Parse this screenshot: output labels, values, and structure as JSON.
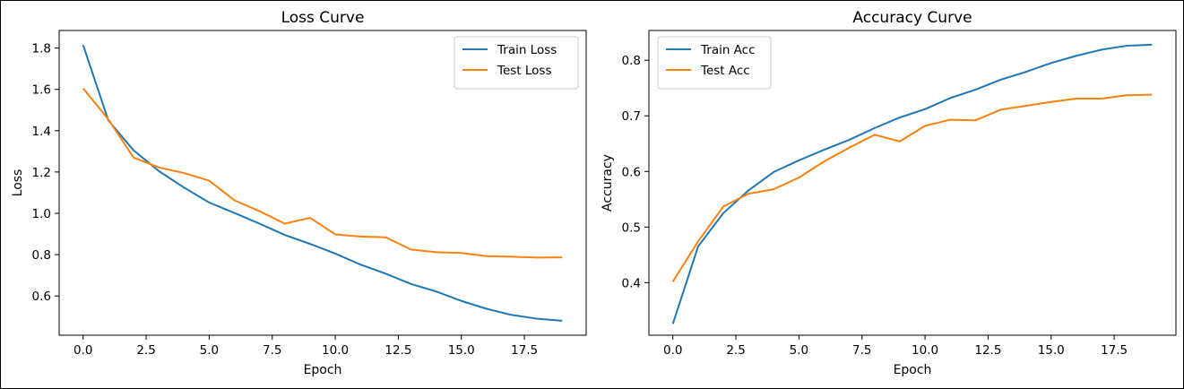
{
  "chart_data": [
    {
      "type": "line",
      "title": "Loss Curve",
      "xlabel": "Epoch",
      "ylabel": "Loss",
      "xlim": [
        -0.95,
        19.95
      ],
      "ylim": [
        0.41,
        1.885
      ],
      "xticks": [
        0.0,
        2.5,
        5.0,
        7.5,
        10.0,
        12.5,
        15.0,
        17.5
      ],
      "xtick_labels": [
        "0.0",
        "2.5",
        "5.0",
        "7.5",
        "10.0",
        "12.5",
        "15.0",
        "17.5"
      ],
      "yticks": [
        0.6,
        0.8,
        1.0,
        1.2,
        1.4,
        1.6,
        1.8
      ],
      "ytick_labels": [
        "0.6",
        "0.8",
        "1.0",
        "1.2",
        "1.4",
        "1.6",
        "1.8"
      ],
      "legend": "top-right",
      "grid": false,
      "x": [
        0,
        1,
        2,
        3,
        4,
        5,
        6,
        7,
        8,
        9,
        10,
        11,
        12,
        13,
        14,
        15,
        16,
        17,
        18,
        19
      ],
      "series": [
        {
          "name": "Train Loss",
          "color": "#1f77b4",
          "values": [
            1.815,
            1.45,
            1.305,
            1.205,
            1.125,
            1.052,
            1.002,
            0.95,
            0.895,
            0.852,
            0.805,
            0.752,
            0.708,
            0.658,
            0.622,
            0.576,
            0.538,
            0.508,
            0.49,
            0.48
          ]
        },
        {
          "name": "Test Loss",
          "color": "#ff7f0e",
          "values": [
            1.605,
            1.455,
            1.27,
            1.222,
            1.195,
            1.158,
            1.063,
            1.01,
            0.95,
            0.978,
            0.898,
            0.888,
            0.884,
            0.825,
            0.812,
            0.808,
            0.793,
            0.79,
            0.786,
            0.787
          ]
        }
      ]
    },
    {
      "type": "line",
      "title": "Accuracy Curve",
      "xlabel": "Epoch",
      "ylabel": "Accuracy",
      "xlim": [
        -0.95,
        19.95
      ],
      "ylim": [
        0.3055,
        0.8535
      ],
      "xticks": [
        0.0,
        2.5,
        5.0,
        7.5,
        10.0,
        12.5,
        15.0,
        17.5
      ],
      "xtick_labels": [
        "0.0",
        "2.5",
        "5.0",
        "7.5",
        "10.0",
        "12.5",
        "15.0",
        "17.5"
      ],
      "yticks": [
        0.4,
        0.5,
        0.6,
        0.7,
        0.8
      ],
      "ytick_labels": [
        "0.4",
        "0.5",
        "0.6",
        "0.7",
        "0.8"
      ],
      "legend": "top-left",
      "grid": false,
      "x": [
        0,
        1,
        2,
        3,
        4,
        5,
        6,
        7,
        8,
        9,
        10,
        11,
        12,
        13,
        14,
        15,
        16,
        17,
        18,
        19
      ],
      "series": [
        {
          "name": "Train Acc",
          "color": "#1f77b4",
          "values": [
            0.326,
            0.465,
            0.525,
            0.566,
            0.599,
            0.62,
            0.639,
            0.657,
            0.678,
            0.697,
            0.712,
            0.732,
            0.747,
            0.765,
            0.779,
            0.795,
            0.808,
            0.819,
            0.826,
            0.828
          ]
        },
        {
          "name": "Test Acc",
          "color": "#ff7f0e",
          "values": [
            0.402,
            0.474,
            0.537,
            0.56,
            0.568,
            0.589,
            0.618,
            0.643,
            0.666,
            0.654,
            0.682,
            0.693,
            0.692,
            0.711,
            0.718,
            0.725,
            0.731,
            0.731,
            0.737,
            0.738
          ]
        }
      ]
    }
  ]
}
